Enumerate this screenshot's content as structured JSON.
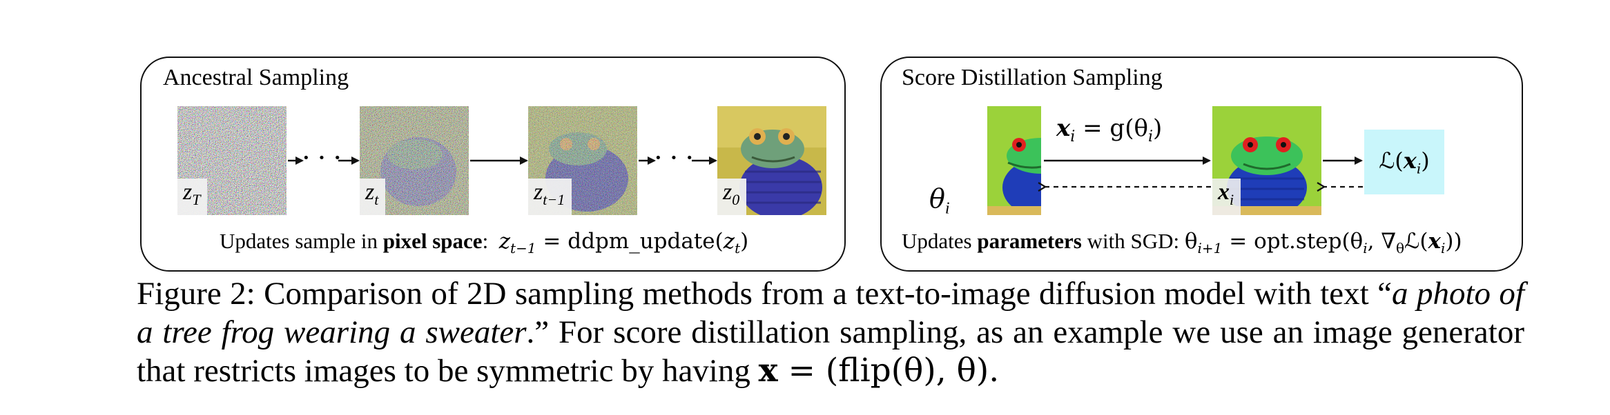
{
  "figure": {
    "ancestral": {
      "title": "Ancestral Sampling",
      "labels": {
        "zT": {
          "base": "z",
          "sub": "T"
        },
        "zt": {
          "base": "z",
          "sub": "t"
        },
        "zt1": {
          "base": "z",
          "sub": "t−1"
        },
        "z0": {
          "base": "z",
          "sub": "0"
        }
      },
      "ellipsis": "· · ·",
      "update_prefix": "Updates sample in ",
      "update_bold": "pixel space",
      "update_colon": ":",
      "update_equation": "z_{t−1} = ddpm_update(z_t)",
      "eq_lhs": "z",
      "eq_lhs_sub": "t−1",
      "eq_rhs": " = ddpm_update(",
      "eq_arg": "z",
      "eq_arg_sub": "t",
      "eq_close": ")"
    },
    "sds": {
      "title": "Score Distillation Sampling",
      "theta_label": {
        "base": "θ",
        "sub": "i"
      },
      "x_label": {
        "base": "x",
        "sub": "i"
      },
      "generator_eq": "x_i = g(θ_i)",
      "gen_x": "x",
      "gen_x_sub": "i",
      "gen_mid": " = g(θ",
      "gen_theta_sub": "i",
      "gen_close": ")",
      "loss_label": "ℒ(x_i)",
      "loss_L": "ℒ(",
      "loss_x": "x",
      "loss_x_sub": "i",
      "loss_close": ")",
      "update_prefix": "Updates ",
      "update_bold": "parameters",
      "update_mid": " with SGD:  ",
      "eq_theta": "θ",
      "eq_theta_sub": "i+1",
      "eq_rhs1": " = opt.step(θ",
      "eq_rhs1_sub": "i",
      "eq_rhs2": ", ∇",
      "eq_rhs2_sub": "θ",
      "eq_rhs3": "ℒ(",
      "eq_rhs3_x": "x",
      "eq_rhs3_x_sub": "i",
      "eq_rhs3_close": "))"
    },
    "caption": {
      "label": "Figure 2:",
      "text1": " Comparison of 2D sampling methods from a text-to-image diffusion model with text “",
      "italic": "a photo of a tree frog wearing a sweater",
      "text2": ".” For score distillation sampling, as an example we use an image generator that restricts images to be symmetric by having ",
      "math_x": "x",
      "math_rest": " = (flip(θ), θ).",
      "full": "Figure 2: Comparison of 2D sampling methods from a text-to-image diffusion model with text “a photo of a tree frog wearing a sweater.” For score distillation sampling, as an example we use an image generator that restricts images to be symmetric by having x = (flip(θ), θ)."
    }
  }
}
